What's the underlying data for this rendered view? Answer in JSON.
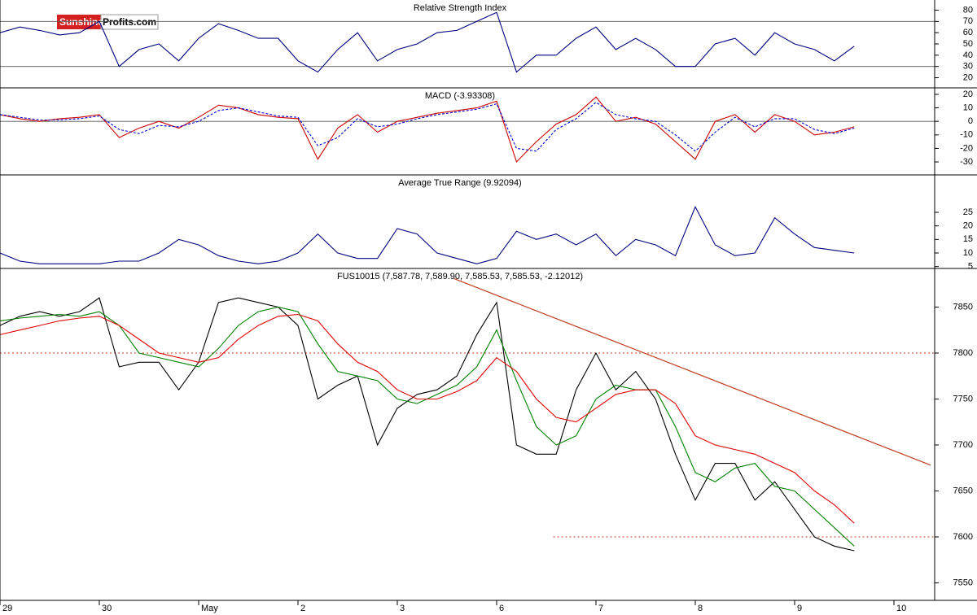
{
  "logo": {
    "part1": "Sunshine",
    "part2": "Profits.com"
  },
  "chart_data": [
    {
      "type": "line",
      "title": "Relative Strength Index",
      "x": [
        0,
        0.2,
        0.4,
        0.6,
        0.8,
        1,
        1.2,
        1.4,
        1.6,
        1.8,
        2,
        2.2,
        2.4,
        2.6,
        2.8,
        3,
        3.2,
        3.4,
        3.6,
        3.8,
        4,
        4.2,
        4.4,
        4.6,
        4.8,
        5,
        5.2,
        5.4,
        5.6,
        5.8,
        6,
        6.2,
        6.4,
        6.6,
        6.8,
        7,
        7.2,
        7.4,
        7.6,
        7.8,
        8,
        8.2,
        8.4,
        8.6
      ],
      "xlim": [
        0,
        9.41
      ],
      "ylim": [
        11,
        89
      ],
      "yticks": [
        20,
        30,
        40,
        50,
        60,
        70,
        80
      ],
      "hlines": [
        70,
        30
      ],
      "series": [
        {
          "color": "#000080",
          "values": [
            60,
            65,
            62,
            58,
            60,
            70,
            30,
            45,
            50,
            35,
            55,
            68,
            62,
            55,
            55,
            35,
            25,
            45,
            60,
            35,
            45,
            50,
            60,
            62,
            70,
            78,
            25,
            40,
            40,
            55,
            65,
            45,
            55,
            45,
            30,
            30,
            50,
            55,
            40,
            60,
            50,
            45,
            35,
            48
          ]
        }
      ]
    },
    {
      "type": "line",
      "title": "MACD (-3.93308)",
      "x": [
        0,
        0.2,
        0.4,
        0.6,
        0.8,
        1,
        1.2,
        1.4,
        1.6,
        1.8,
        2,
        2.2,
        2.4,
        2.6,
        2.8,
        3,
        3.2,
        3.4,
        3.6,
        3.8,
        4,
        4.2,
        4.4,
        4.6,
        4.8,
        5,
        5.2,
        5.4,
        5.6,
        5.8,
        6,
        6.2,
        6.4,
        6.6,
        6.8,
        7,
        7.2,
        7.4,
        7.6,
        7.8,
        8,
        8.2,
        8.4,
        8.6
      ],
      "xlim": [
        0,
        9.41
      ],
      "ylim": [
        -39.6,
        24.8
      ],
      "yticks": [
        -30,
        -20,
        -10,
        0,
        10,
        20
      ],
      "hlines": [
        0
      ],
      "series": [
        {
          "color": "#cc0000",
          "values": [
            5,
            2,
            0,
            2,
            3,
            5,
            -12,
            -5,
            0,
            -5,
            3,
            12,
            10,
            5,
            3,
            2,
            -28,
            -5,
            5,
            -8,
            0,
            3,
            6,
            8,
            10,
            15,
            -30,
            -15,
            -2,
            5,
            18,
            0,
            3,
            -2,
            -15,
            -28,
            0,
            5,
            -8,
            5,
            0,
            -10,
            -8,
            -4
          ]
        },
        {
          "color": "#0000cc",
          "dash": true,
          "values": [
            5,
            3,
            1,
            1,
            2,
            4,
            -6,
            -9,
            -3,
            -4,
            0,
            8,
            10,
            7,
            4,
            3,
            -18,
            -12,
            2,
            -4,
            -2,
            2,
            5,
            7,
            9,
            13,
            -20,
            -22,
            -6,
            2,
            14,
            5,
            2,
            0,
            -10,
            -22,
            -8,
            3,
            -4,
            2,
            2,
            -6,
            -9,
            -5
          ]
        }
      ]
    },
    {
      "type": "line",
      "title": "Average True Range (9.92094)",
      "x": [
        0,
        0.2,
        0.4,
        0.6,
        0.8,
        1,
        1.2,
        1.4,
        1.6,
        1.8,
        2,
        2.2,
        2.4,
        2.6,
        2.8,
        3,
        3.2,
        3.4,
        3.6,
        3.8,
        4,
        4.2,
        4.4,
        4.6,
        4.8,
        5,
        5.2,
        5.4,
        5.6,
        5.8,
        6,
        6.2,
        6.4,
        6.6,
        6.8,
        7,
        7.2,
        7.4,
        7.6,
        7.8,
        8,
        8.2,
        8.4,
        8.6
      ],
      "xlim": [
        0,
        9.41
      ],
      "ylim": [
        4.3,
        38.8
      ],
      "yticks": [
        5,
        10,
        15,
        20,
        25
      ],
      "series": [
        {
          "color": "#000080",
          "values": [
            10,
            7,
            6,
            6,
            6,
            6,
            7,
            7,
            10,
            15,
            13,
            9,
            7,
            6,
            7,
            10,
            17,
            10,
            8,
            8,
            19,
            17,
            10,
            8,
            6,
            8,
            18,
            15,
            17,
            13,
            17,
            9,
            15,
            13,
            9,
            27,
            13,
            9,
            10,
            23,
            17,
            12,
            11,
            10
          ]
        }
      ]
    },
    {
      "type": "line",
      "title": "FUS10015 (7,587.78, 7,589.90, 7,585.53, 7,585.53, -2.12012)",
      "x": [
        0,
        0.2,
        0.4,
        0.6,
        0.8,
        1,
        1.2,
        1.4,
        1.6,
        1.8,
        2,
        2.2,
        2.4,
        2.6,
        2.8,
        3,
        3.2,
        3.4,
        3.6,
        3.8,
        4,
        4.2,
        4.4,
        4.6,
        4.8,
        5,
        5.2,
        5.4,
        5.6,
        5.8,
        6,
        6.2,
        6.4,
        6.6,
        6.8,
        7,
        7.2,
        7.4,
        7.6,
        7.8,
        8,
        8.2,
        8.4,
        8.6
      ],
      "xlim": [
        0,
        9.41
      ],
      "ylim": [
        7531,
        7892
      ],
      "yticks": [
        7550,
        7600,
        7650,
        7700,
        7750,
        7800,
        7850
      ],
      "xticks": [
        {
          "value": 0,
          "label": "29"
        },
        {
          "value": 1,
          "label": "30"
        },
        {
          "value": 2,
          "label": "May"
        },
        {
          "value": 3,
          "label": "2"
        },
        {
          "value": 4,
          "label": "3"
        },
        {
          "value": 5,
          "label": "6"
        },
        {
          "value": 6,
          "label": "7"
        },
        {
          "value": 7,
          "label": "8"
        },
        {
          "value": 8,
          "label": "9"
        },
        {
          "value": 9,
          "label": "10"
        }
      ],
      "dashed_levels": [
        {
          "y": 7800,
          "x": [
            0,
            9.41
          ]
        },
        {
          "y": 7600,
          "x": [
            5.57,
            9.41
          ]
        }
      ],
      "trendline": {
        "x": [
          4.57,
          9.37
        ],
        "y": [
          7881,
          7678
        ],
        "color": "#c04020"
      },
      "series": [
        {
          "color": "#000000",
          "values": [
            7830,
            7840,
            7845,
            7840,
            7845,
            7860,
            7785,
            7790,
            7790,
            7760,
            7790,
            7855,
            7860,
            7855,
            7850,
            7830,
            7750,
            7765,
            7775,
            7700,
            7740,
            7755,
            7760,
            7775,
            7820,
            7855,
            7700,
            7690,
            7690,
            7760,
            7800,
            7760,
            7780,
            7750,
            7690,
            7640,
            7680,
            7680,
            7640,
            7660,
            7630,
            7600,
            7590,
            7585
          ]
        },
        {
          "color": "#008000",
          "values": [
            7835,
            7838,
            7840,
            7842,
            7840,
            7845,
            7830,
            7800,
            7795,
            7790,
            7785,
            7805,
            7830,
            7845,
            7850,
            7845,
            7810,
            7780,
            7775,
            7770,
            7750,
            7745,
            7755,
            7765,
            7785,
            7825,
            7770,
            7720,
            7700,
            7710,
            7750,
            7765,
            7760,
            7760,
            7720,
            7670,
            7660,
            7675,
            7680,
            7655,
            7650,
            7630,
            7610,
            7590
          ]
        },
        {
          "color": "#e00000",
          "values": [
            7820,
            7825,
            7830,
            7835,
            7838,
            7840,
            7830,
            7815,
            7800,
            7795,
            7790,
            7795,
            7815,
            7830,
            7840,
            7842,
            7835,
            7810,
            7790,
            7780,
            7760,
            7750,
            7750,
            7758,
            7770,
            7795,
            7780,
            7750,
            7730,
            7725,
            7740,
            7755,
            7760,
            7760,
            7745,
            7710,
            7700,
            7695,
            7690,
            7680,
            7670,
            7650,
            7635,
            7615
          ]
        }
      ]
    }
  ]
}
